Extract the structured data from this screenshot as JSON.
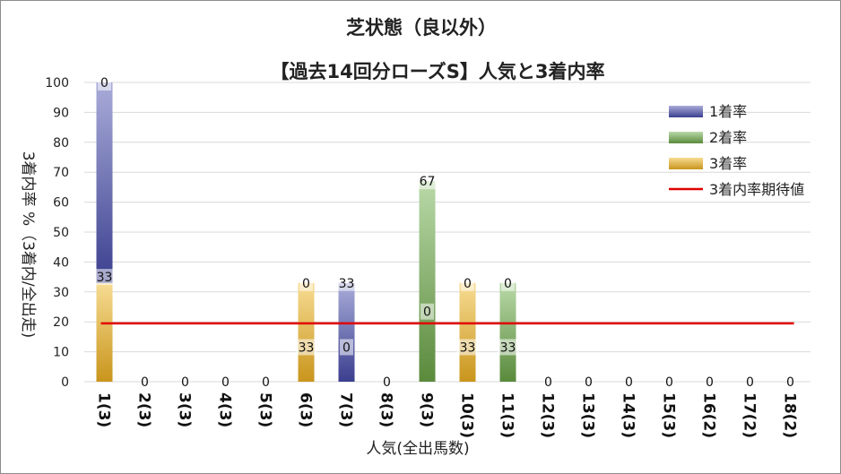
{
  "chart_data": {
    "type": "bar",
    "title": "芝状態（良以外）",
    "subtitle": "【過去14回分ローズS】人気と3着内率",
    "xlabel": "人気(全出馬数)",
    "ylabel": "3着内率 %（3着内/全出走)",
    "ylim": [
      0,
      100
    ],
    "yticks": [
      0,
      10,
      20,
      30,
      40,
      50,
      60,
      70,
      80,
      90,
      100
    ],
    "grid": true,
    "legend_position": "top-right",
    "categories": [
      "1(3)",
      "2(3)",
      "3(3)",
      "4(3)",
      "5(3)",
      "6(3)",
      "7(3)",
      "8(3)",
      "9(3)",
      "10(3)",
      "11(3)",
      "12(3)",
      "13(3)",
      "14(3)",
      "15(3)",
      "16(2)",
      "17(2)",
      "18(2)"
    ],
    "series": [
      {
        "name": "1着率",
        "color": "#3b3f8f",
        "values": [
          67,
          0,
          0,
          0,
          0,
          0,
          33,
          0,
          0,
          0,
          0,
          0,
          0,
          0,
          0,
          0,
          0,
          0
        ]
      },
      {
        "name": "2着率",
        "color": "#5a8a3c",
        "values": [
          0,
          0,
          0,
          0,
          0,
          0,
          0,
          0,
          67,
          0,
          33,
          0,
          0,
          0,
          0,
          0,
          0,
          0
        ]
      },
      {
        "name": "3着率",
        "color": "#c9951c",
        "values": [
          33,
          0,
          0,
          0,
          0,
          33,
          0,
          0,
          0,
          33,
          0,
          0,
          0,
          0,
          0,
          0,
          0,
          0
        ]
      }
    ],
    "data_labels": [
      {
        "values": [
          "33",
          "0"
        ],
        "cat": 0
      },
      {
        "values": [
          "0"
        ],
        "cat": 1
      },
      {
        "values": [
          "0"
        ],
        "cat": 2
      },
      {
        "values": [
          "0"
        ],
        "cat": 3
      },
      {
        "values": [
          "0"
        ],
        "cat": 4
      },
      {
        "values": [
          "33",
          "0"
        ],
        "cat": 5
      },
      {
        "values": [
          "0",
          "33"
        ],
        "cat": 6
      },
      {
        "values": [
          "0"
        ],
        "cat": 7
      },
      {
        "values": [
          "0",
          "67"
        ],
        "cat": 8
      },
      {
        "values": [
          "33",
          "0"
        ],
        "cat": 9
      },
      {
        "values": [
          "33",
          "0"
        ],
        "cat": 10
      },
      {
        "values": [
          "0"
        ],
        "cat": 11
      },
      {
        "values": [
          "0"
        ],
        "cat": 12
      },
      {
        "values": [
          "0"
        ],
        "cat": 13
      },
      {
        "values": [
          "0"
        ],
        "cat": 14
      },
      {
        "values": [
          "0"
        ],
        "cat": 15
      },
      {
        "values": [
          "0"
        ],
        "cat": 16
      },
      {
        "values": [
          "0"
        ],
        "cat": 17
      }
    ],
    "expected_line": {
      "name": "3着内率期待値",
      "color": "#e00000",
      "value": 19.5
    }
  }
}
